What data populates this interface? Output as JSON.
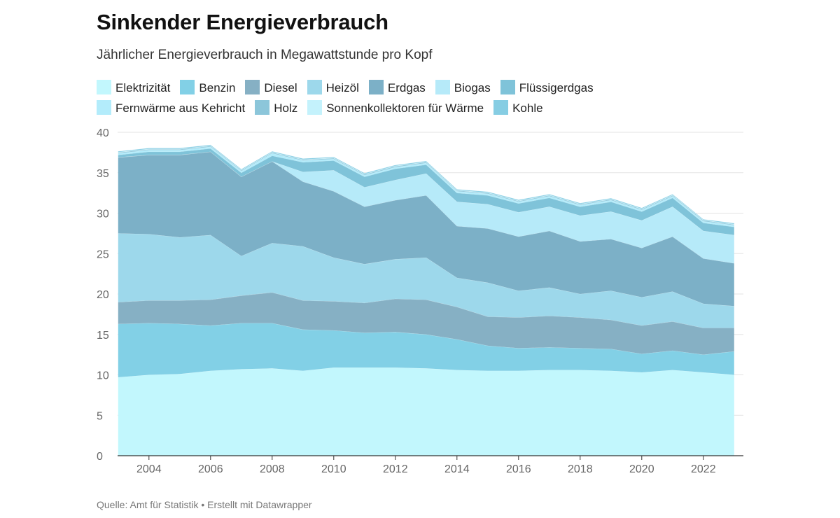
{
  "title": "Sinkender Energieverbrauch",
  "subtitle": "Jährlicher Energieverbrauch in Megawattstunde pro Kopf",
  "source": "Quelle: Amt für Statistik • Erstellt mit Datawrapper",
  "chart_data": {
    "type": "area",
    "stacked": true,
    "title": "Sinkender Energieverbrauch",
    "subtitle": "Jährlicher Energieverbrauch in Megawattstunde pro Kopf",
    "xlabel": "",
    "ylabel": "",
    "ylim": [
      0,
      40
    ],
    "xlim": [
      2002.3,
      2023.3
    ],
    "grid": true,
    "legend_position": "top",
    "y_ticks": [
      0,
      5,
      10,
      15,
      20,
      25,
      30,
      35,
      40
    ],
    "x_ticks": [
      2004,
      2006,
      2008,
      2010,
      2012,
      2014,
      2016,
      2018,
      2020,
      2022
    ],
    "x": [
      2003,
      2004,
      2005,
      2006,
      2007,
      2008,
      2009,
      2010,
      2011,
      2012,
      2013,
      2014,
      2015,
      2016,
      2017,
      2018,
      2019,
      2020,
      2021,
      2022,
      2023
    ],
    "series": [
      {
        "name": "Elektrizität",
        "color": "#c2f7fd",
        "values": [
          9.7,
          10.0,
          10.1,
          10.5,
          10.7,
          10.8,
          10.5,
          10.9,
          10.9,
          10.9,
          10.8,
          10.6,
          10.5,
          10.5,
          10.6,
          10.6,
          10.5,
          10.3,
          10.6,
          10.3,
          10.0
        ]
      },
      {
        "name": "Benzin",
        "color": "#82d0e6",
        "values": [
          6.6,
          6.4,
          6.2,
          5.6,
          5.7,
          5.6,
          5.1,
          4.6,
          4.3,
          4.4,
          4.2,
          3.8,
          3.1,
          2.8,
          2.8,
          2.7,
          2.7,
          2.3,
          2.4,
          2.2,
          2.9
        ]
      },
      {
        "name": "Diesel",
        "color": "#86b0c4",
        "values": [
          2.7,
          2.8,
          2.9,
          3.2,
          3.4,
          3.8,
          3.6,
          3.6,
          3.7,
          4.1,
          4.3,
          4.0,
          3.6,
          3.8,
          3.9,
          3.8,
          3.6,
          3.5,
          3.6,
          3.3,
          2.9
        ]
      },
      {
        "name": "Heizöl",
        "color": "#9dd8eb",
        "values": [
          8.5,
          8.2,
          7.8,
          8.0,
          4.9,
          6.1,
          6.7,
          5.4,
          4.8,
          4.9,
          5.2,
          3.6,
          4.2,
          3.3,
          3.5,
          2.9,
          3.6,
          3.5,
          3.7,
          3.0,
          2.7
        ]
      },
      {
        "name": "Erdgas",
        "color": "#7cb0c7",
        "values": [
          9.4,
          9.8,
          10.2,
          10.3,
          9.8,
          10.1,
          8.0,
          8.2,
          7.1,
          7.3,
          7.7,
          6.4,
          6.7,
          6.7,
          7.0,
          6.5,
          6.4,
          6.1,
          6.8,
          5.6,
          5.3
        ]
      },
      {
        "name": "Biogas",
        "color": "#b6eaf9",
        "values": [
          0.0,
          0.0,
          0.0,
          0.0,
          0.0,
          0.0,
          1.2,
          2.6,
          2.4,
          2.5,
          2.7,
          3.0,
          3.0,
          3.0,
          3.0,
          3.2,
          3.4,
          3.4,
          3.7,
          3.4,
          3.5
        ]
      },
      {
        "name": "Flüssigerdgas",
        "color": "#7fc3d9",
        "values": [
          0.3,
          0.4,
          0.4,
          0.4,
          0.5,
          0.7,
          1.2,
          1.2,
          1.3,
          1.4,
          1.1,
          1.1,
          1.1,
          1.1,
          1.1,
          1.1,
          1.2,
          1.1,
          1.1,
          1.0,
          1.0
        ]
      },
      {
        "name": "Fernwärme aus Kehricht",
        "color": "#b3ecfb",
        "values": [
          0.2,
          0.2,
          0.2,
          0.2,
          0.2,
          0.3,
          0.2,
          0.2,
          0.2,
          0.2,
          0.2,
          0.2,
          0.2,
          0.2,
          0.2,
          0.2,
          0.2,
          0.2,
          0.2,
          0.2,
          0.2
        ]
      },
      {
        "name": "Holz",
        "color": "#8cc6da",
        "values": [
          0.1,
          0.1,
          0.1,
          0.1,
          0.1,
          0.1,
          0.1,
          0.1,
          0.1,
          0.1,
          0.1,
          0.1,
          0.1,
          0.1,
          0.1,
          0.1,
          0.1,
          0.1,
          0.1,
          0.1,
          0.1
        ]
      },
      {
        "name": "Sonnenkollektoren für Wärme",
        "color": "#c4f2fc",
        "values": [
          0.05,
          0.05,
          0.05,
          0.05,
          0.05,
          0.05,
          0.05,
          0.05,
          0.05,
          0.05,
          0.05,
          0.05,
          0.05,
          0.05,
          0.05,
          0.05,
          0.05,
          0.05,
          0.05,
          0.05,
          0.05
        ]
      },
      {
        "name": "Kohle",
        "color": "#86cde3",
        "values": [
          0.1,
          0.1,
          0.1,
          0.1,
          0.1,
          0.1,
          0.1,
          0.1,
          0.1,
          0.1,
          0.1,
          0.1,
          0.1,
          0.1,
          0.1,
          0.1,
          0.1,
          0.1,
          0.1,
          0.1,
          0.1
        ]
      }
    ]
  }
}
